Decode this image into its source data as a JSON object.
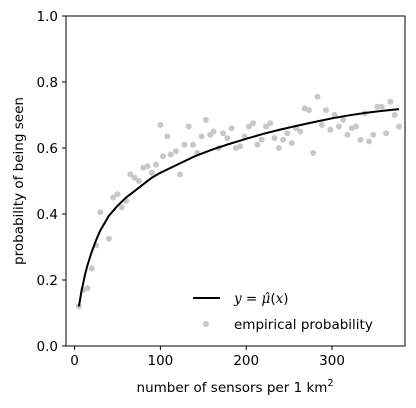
{
  "chart_data": {
    "type": "scatter",
    "xlabel": "number of sensors per 1 km",
    "xlabel_sup": "2",
    "ylabel": "probability of being seen",
    "xlim": [
      -10,
      385
    ],
    "ylim": [
      0.0,
      1.0
    ],
    "xticks": [
      0,
      100,
      200,
      300
    ],
    "yticks": [
      0.0,
      0.2,
      0.4,
      0.6,
      0.8,
      1.0
    ],
    "ytick_labels": [
      "0.0",
      "0.2",
      "0.4",
      "0.6",
      "0.8",
      "1.0"
    ],
    "grid": false,
    "legend_position": "lower-right",
    "series": [
      {
        "name": "y = μ̂(x)",
        "kind": "line",
        "color": "#000000",
        "x": [
          5,
          8,
          10,
          12,
          15,
          20,
          25,
          30,
          40,
          50,
          60,
          70,
          80,
          90,
          100,
          120,
          140,
          160,
          180,
          200,
          220,
          240,
          260,
          280,
          300,
          320,
          340,
          360,
          378
        ],
        "y": [
          0.12,
          0.165,
          0.19,
          0.215,
          0.245,
          0.285,
          0.32,
          0.35,
          0.395,
          0.425,
          0.45,
          0.47,
          0.49,
          0.51,
          0.525,
          0.55,
          0.575,
          0.595,
          0.612,
          0.628,
          0.643,
          0.656,
          0.668,
          0.679,
          0.69,
          0.699,
          0.707,
          0.713,
          0.718
        ]
      },
      {
        "name": "empirical probability",
        "kind": "scatter",
        "color": "#c8c8c8",
        "x": [
          5,
          10,
          15,
          20,
          25,
          30,
          40,
          45,
          50,
          55,
          60,
          65,
          70,
          75,
          80,
          85,
          90,
          95,
          100,
          103,
          108,
          112,
          118,
          123,
          128,
          133,
          138,
          143,
          148,
          153,
          158,
          162,
          168,
          173,
          178,
          183,
          188,
          193,
          198,
          203,
          208,
          213,
          218,
          223,
          228,
          233,
          238,
          243,
          248,
          253,
          258,
          263,
          268,
          273,
          278,
          283,
          288,
          293,
          298,
          303,
          308,
          313,
          318,
          323,
          328,
          333,
          338,
          343,
          348,
          353,
          358,
          363,
          368,
          373,
          378
        ],
        "y": [
          0.12,
          0.17,
          0.175,
          0.235,
          0.305,
          0.405,
          0.325,
          0.45,
          0.46,
          0.42,
          0.44,
          0.52,
          0.51,
          0.5,
          0.54,
          0.545,
          0.525,
          0.55,
          0.67,
          0.575,
          0.635,
          0.58,
          0.59,
          0.52,
          0.61,
          0.665,
          0.61,
          0.585,
          0.635,
          0.685,
          0.64,
          0.65,
          0.6,
          0.645,
          0.63,
          0.66,
          0.6,
          0.605,
          0.635,
          0.665,
          0.675,
          0.61,
          0.625,
          0.665,
          0.675,
          0.63,
          0.6,
          0.625,
          0.645,
          0.615,
          0.66,
          0.65,
          0.72,
          0.715,
          0.585,
          0.755,
          0.67,
          0.715,
          0.655,
          0.7,
          0.665,
          0.685,
          0.64,
          0.66,
          0.665,
          0.625,
          0.705,
          0.62,
          0.64,
          0.725,
          0.725,
          0.645,
          0.74,
          0.7,
          0.665
        ]
      }
    ]
  }
}
